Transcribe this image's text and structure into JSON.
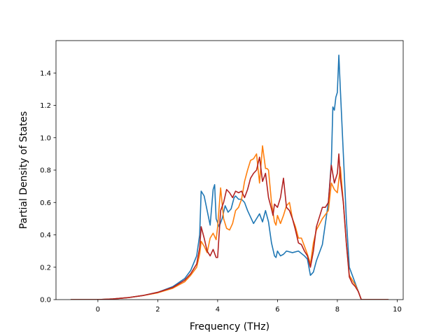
{
  "chart_data": {
    "type": "line",
    "title": "",
    "xlabel": "Frequency (THz)",
    "ylabel": "Partial Density of States",
    "xlim": [
      -1.4,
      10.2
    ],
    "ylim": [
      0.0,
      1.6
    ],
    "xticks": [
      0,
      2,
      4,
      6,
      8,
      10
    ],
    "yticks": [
      0.0,
      0.2,
      0.4,
      0.6,
      0.8,
      1.0,
      1.2,
      1.4
    ],
    "xtick_labels": [
      "0",
      "2",
      "4",
      "6",
      "8",
      "10"
    ],
    "ytick_labels": [
      "0.0",
      "0.2",
      "0.4",
      "0.6",
      "0.8",
      "1.0",
      "1.2",
      "1.4"
    ],
    "grid": false,
    "series": [
      {
        "color": "#1f77b4",
        "x": [
          -0.9,
          0.0,
          0.5,
          1.0,
          1.5,
          2.0,
          2.5,
          2.9,
          3.1,
          3.3,
          3.4,
          3.45,
          3.55,
          3.65,
          3.75,
          3.85,
          3.9,
          3.95,
          4.05,
          4.15,
          4.25,
          4.35,
          4.45,
          4.55,
          4.6,
          4.7,
          4.8,
          4.9,
          5.0,
          5.1,
          5.2,
          5.3,
          5.4,
          5.5,
          5.6,
          5.7,
          5.8,
          5.9,
          5.95,
          6.0,
          6.1,
          6.2,
          6.3,
          6.5,
          6.7,
          6.9,
          7.0,
          7.1,
          7.2,
          7.3,
          7.5,
          7.7,
          7.8,
          7.85,
          7.9,
          7.95,
          8.0,
          8.05,
          8.1,
          8.2,
          8.3,
          8.4,
          8.5,
          8.6,
          8.7,
          8.8,
          9.0,
          9.7
        ],
        "y": [
          0.0,
          0.0,
          0.004,
          0.012,
          0.025,
          0.045,
          0.08,
          0.13,
          0.18,
          0.27,
          0.4,
          0.67,
          0.64,
          0.55,
          0.46,
          0.68,
          0.71,
          0.5,
          0.45,
          0.5,
          0.58,
          0.54,
          0.56,
          0.63,
          0.64,
          0.62,
          0.62,
          0.6,
          0.55,
          0.51,
          0.47,
          0.5,
          0.53,
          0.48,
          0.55,
          0.48,
          0.35,
          0.27,
          0.26,
          0.3,
          0.27,
          0.28,
          0.3,
          0.29,
          0.3,
          0.27,
          0.25,
          0.15,
          0.17,
          0.24,
          0.34,
          0.6,
          0.85,
          1.19,
          1.17,
          1.25,
          1.28,
          1.51,
          1.3,
          0.9,
          0.5,
          0.2,
          0.15,
          0.1,
          0.05,
          0.0,
          0.0,
          0.0
        ]
      },
      {
        "color": "#ff7f0e",
        "x": [
          -0.9,
          0.0,
          0.5,
          1.0,
          1.5,
          2.0,
          2.5,
          2.9,
          3.1,
          3.3,
          3.4,
          3.45,
          3.55,
          3.65,
          3.75,
          3.85,
          3.95,
          4.0,
          4.1,
          4.2,
          4.3,
          4.4,
          4.5,
          4.6,
          4.7,
          4.8,
          4.9,
          5.0,
          5.1,
          5.2,
          5.3,
          5.4,
          5.5,
          5.6,
          5.65,
          5.7,
          5.8,
          5.9,
          5.95,
          6.0,
          6.1,
          6.2,
          6.3,
          6.4,
          6.5,
          6.6,
          6.7,
          6.8,
          6.9,
          7.0,
          7.1,
          7.2,
          7.3,
          7.5,
          7.7,
          7.8,
          7.9,
          8.0,
          8.1,
          8.2,
          8.3,
          8.4,
          8.5,
          8.6,
          8.7,
          8.8,
          9.0,
          9.7
        ],
        "y": [
          0.0,
          0.0,
          0.004,
          0.012,
          0.025,
          0.042,
          0.07,
          0.11,
          0.15,
          0.2,
          0.28,
          0.36,
          0.33,
          0.29,
          0.38,
          0.41,
          0.37,
          0.45,
          0.69,
          0.5,
          0.44,
          0.43,
          0.47,
          0.55,
          0.57,
          0.62,
          0.73,
          0.8,
          0.86,
          0.87,
          0.9,
          0.72,
          0.95,
          0.81,
          0.81,
          0.8,
          0.6,
          0.48,
          0.46,
          0.52,
          0.47,
          0.52,
          0.58,
          0.6,
          0.5,
          0.45,
          0.38,
          0.38,
          0.33,
          0.28,
          0.22,
          0.35,
          0.43,
          0.5,
          0.55,
          0.72,
          0.68,
          0.66,
          0.82,
          0.6,
          0.35,
          0.15,
          0.12,
          0.09,
          0.05,
          0.0,
          0.0,
          0.0
        ]
      },
      {
        "color": "#b22222",
        "x": [
          -0.9,
          0.0,
          0.5,
          1.0,
          1.5,
          2.0,
          2.5,
          2.9,
          3.1,
          3.3,
          3.4,
          3.45,
          3.55,
          3.65,
          3.75,
          3.85,
          3.95,
          4.0,
          4.1,
          4.2,
          4.3,
          4.4,
          4.5,
          4.6,
          4.7,
          4.8,
          4.9,
          5.0,
          5.1,
          5.2,
          5.3,
          5.4,
          5.5,
          5.6,
          5.7,
          5.8,
          5.85,
          5.9,
          6.0,
          6.1,
          6.2,
          6.3,
          6.4,
          6.5,
          6.6,
          6.7,
          6.8,
          6.9,
          7.0,
          7.1,
          7.2,
          7.3,
          7.5,
          7.6,
          7.7,
          7.8,
          7.9,
          8.0,
          8.05,
          8.1,
          8.2,
          8.3,
          8.4,
          8.5,
          8.6,
          8.7,
          8.8,
          9.0,
          9.7
        ],
        "y": [
          0.0,
          0.0,
          0.004,
          0.012,
          0.025,
          0.045,
          0.075,
          0.12,
          0.16,
          0.22,
          0.32,
          0.45,
          0.38,
          0.3,
          0.27,
          0.31,
          0.26,
          0.26,
          0.55,
          0.6,
          0.68,
          0.66,
          0.63,
          0.67,
          0.66,
          0.67,
          0.63,
          0.68,
          0.75,
          0.78,
          0.8,
          0.88,
          0.73,
          0.78,
          0.63,
          0.56,
          0.52,
          0.59,
          0.57,
          0.63,
          0.75,
          0.57,
          0.55,
          0.5,
          0.43,
          0.35,
          0.34,
          0.3,
          0.27,
          0.2,
          0.3,
          0.45,
          0.57,
          0.57,
          0.6,
          0.83,
          0.72,
          0.78,
          0.9,
          0.75,
          0.6,
          0.35,
          0.14,
          0.1,
          0.08,
          0.05,
          0.0,
          0.0,
          0.0
        ]
      }
    ]
  }
}
